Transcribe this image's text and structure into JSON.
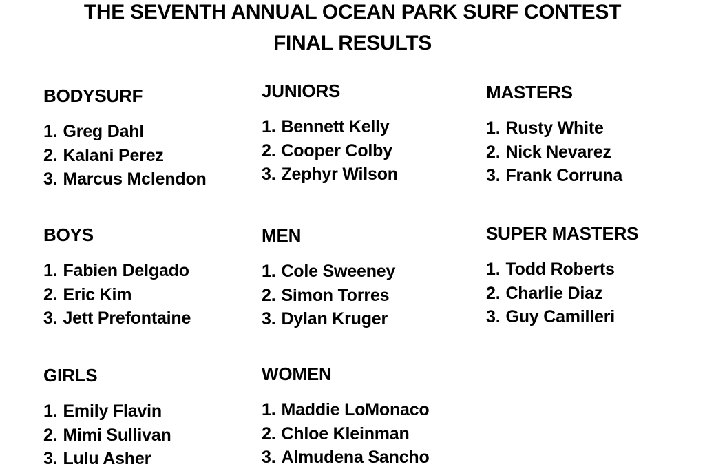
{
  "page": {
    "background_color": "#ffffff",
    "text_color": "#000000"
  },
  "title": {
    "line1": "THE SEVENTH ANNUAL OCEAN PARK SURF CONTEST",
    "line2": "FINAL RESULTS"
  },
  "results": {
    "columns": [
      {
        "sections": [
          {
            "category": "BODYSURF",
            "entries": [
              {
                "rank": "1.",
                "name": "Greg Dahl"
              },
              {
                "rank": "2.",
                "name": "Kalani Perez"
              },
              {
                "rank": "3.",
                "name": "Marcus Mclendon"
              }
            ]
          },
          {
            "category": "BOYS",
            "entries": [
              {
                "rank": "1.",
                "name": "Fabien Delgado"
              },
              {
                "rank": "2.",
                "name": "Eric Kim"
              },
              {
                "rank": "3.",
                "name": "Jett Prefontaine"
              }
            ]
          },
          {
            "category": "GIRLS",
            "entries": [
              {
                "rank": "1.",
                "name": "Emily Flavin"
              },
              {
                "rank": "2.",
                "name": "Mimi Sullivan"
              },
              {
                "rank": "3.",
                "name": "Lulu Asher"
              }
            ]
          }
        ]
      },
      {
        "sections": [
          {
            "category": "JUNIORS",
            "entries": [
              {
                "rank": "1.",
                "name": "Bennett Kelly"
              },
              {
                "rank": "2.",
                "name": "Cooper Colby"
              },
              {
                "rank": "3.",
                "name": "Zephyr Wilson"
              }
            ]
          },
          {
            "category": "MEN",
            "entries": [
              {
                "rank": "1.",
                "name": "Cole Sweeney"
              },
              {
                "rank": "2.",
                "name": "Simon Torres"
              },
              {
                "rank": "3.",
                "name": "Dylan Kruger"
              }
            ]
          },
          {
            "category": "WOMEN",
            "entries": [
              {
                "rank": "1.",
                "name": "Maddie LoMonaco"
              },
              {
                "rank": "2.",
                "name": "Chloe Kleinman"
              },
              {
                "rank": "3.",
                "name": "Almudena Sancho"
              }
            ]
          }
        ]
      },
      {
        "sections": [
          {
            "category": "MASTERS",
            "entries": [
              {
                "rank": "1.",
                "name": "Rusty White"
              },
              {
                "rank": "2.",
                "name": "Nick Nevarez"
              },
              {
                "rank": "3.",
                "name": "Frank Corruna"
              }
            ]
          },
          {
            "category": "SUPER MASTERS",
            "entries": [
              {
                "rank": "1.",
                "name": "Todd Roberts"
              },
              {
                "rank": "2.",
                "name": "Charlie Diaz"
              },
              {
                "rank": "3.",
                "name": "Guy Camilleri"
              }
            ]
          }
        ]
      }
    ]
  }
}
